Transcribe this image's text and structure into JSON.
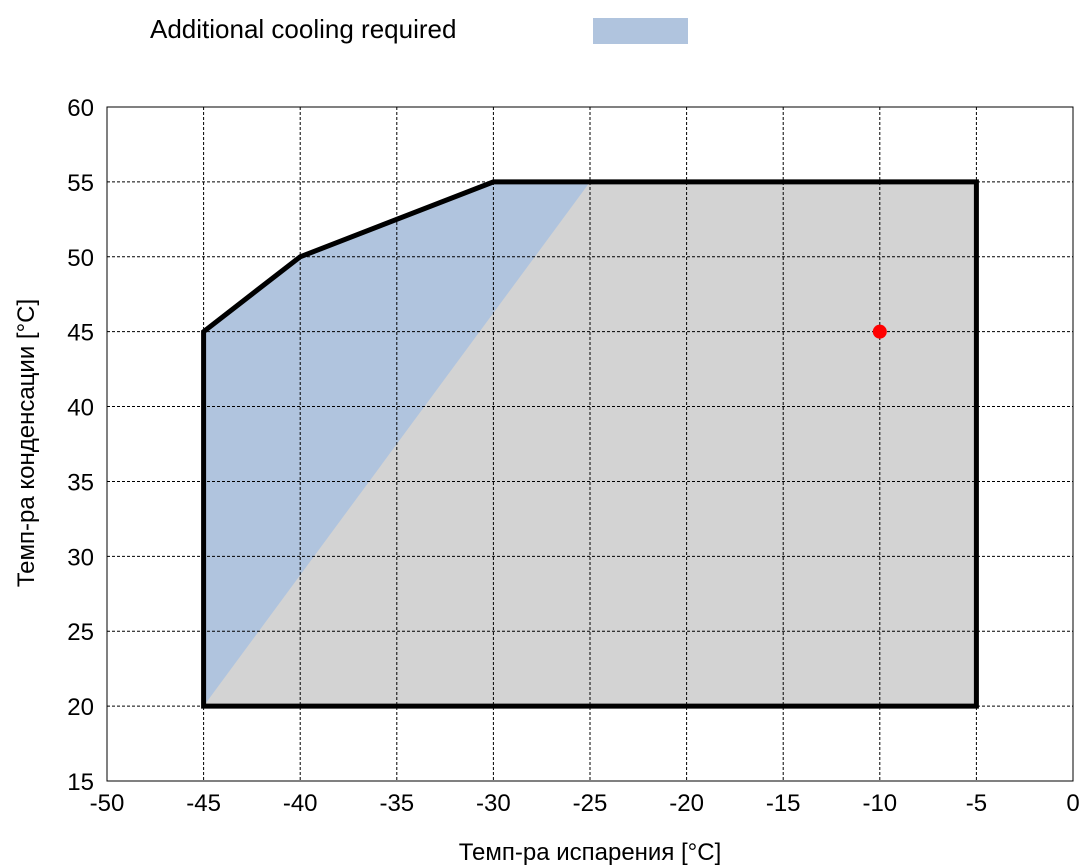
{
  "chart_data": {
    "type": "area",
    "legend": {
      "position": "top",
      "entries": [
        {
          "label": "Additional cooling required",
          "color": "#b0c4de"
        }
      ]
    },
    "xlabel": "Темп-ра испарения [°C]",
    "ylabel": "Темп-ра конденсации [°C]",
    "xlim": [
      -50,
      0
    ],
    "ylim": [
      15,
      60
    ],
    "xticks": [
      -50,
      -45,
      -40,
      -35,
      -30,
      -25,
      -20,
      -15,
      -10,
      -5,
      0
    ],
    "yticks": [
      15,
      20,
      25,
      30,
      35,
      40,
      45,
      50,
      55,
      60
    ],
    "xtick_labels": [
      "-50",
      "-45",
      "-40",
      "-35",
      "-30",
      "-25",
      "-20",
      "-15",
      "-10",
      "-5",
      "0"
    ],
    "ytick_labels": [
      "15",
      "20",
      "25",
      "30",
      "35",
      "40",
      "45",
      "50",
      "55",
      "60"
    ],
    "grid": true,
    "envelope": {
      "fill": "#d3d3d3",
      "stroke": "#000000",
      "points": [
        [
          -45,
          20
        ],
        [
          -45,
          45
        ],
        [
          -40,
          50
        ],
        [
          -30,
          55
        ],
        [
          -5,
          55
        ],
        [
          -5,
          20
        ]
      ]
    },
    "additional_cooling_region": {
      "fill": "#b0c4de",
      "points": [
        [
          -45,
          20
        ],
        [
          -45,
          45
        ],
        [
          -40,
          50
        ],
        [
          -30,
          55
        ],
        [
          -25,
          55
        ]
      ]
    },
    "operating_point": {
      "x": -10,
      "y": 45,
      "color": "#ff0000"
    }
  }
}
